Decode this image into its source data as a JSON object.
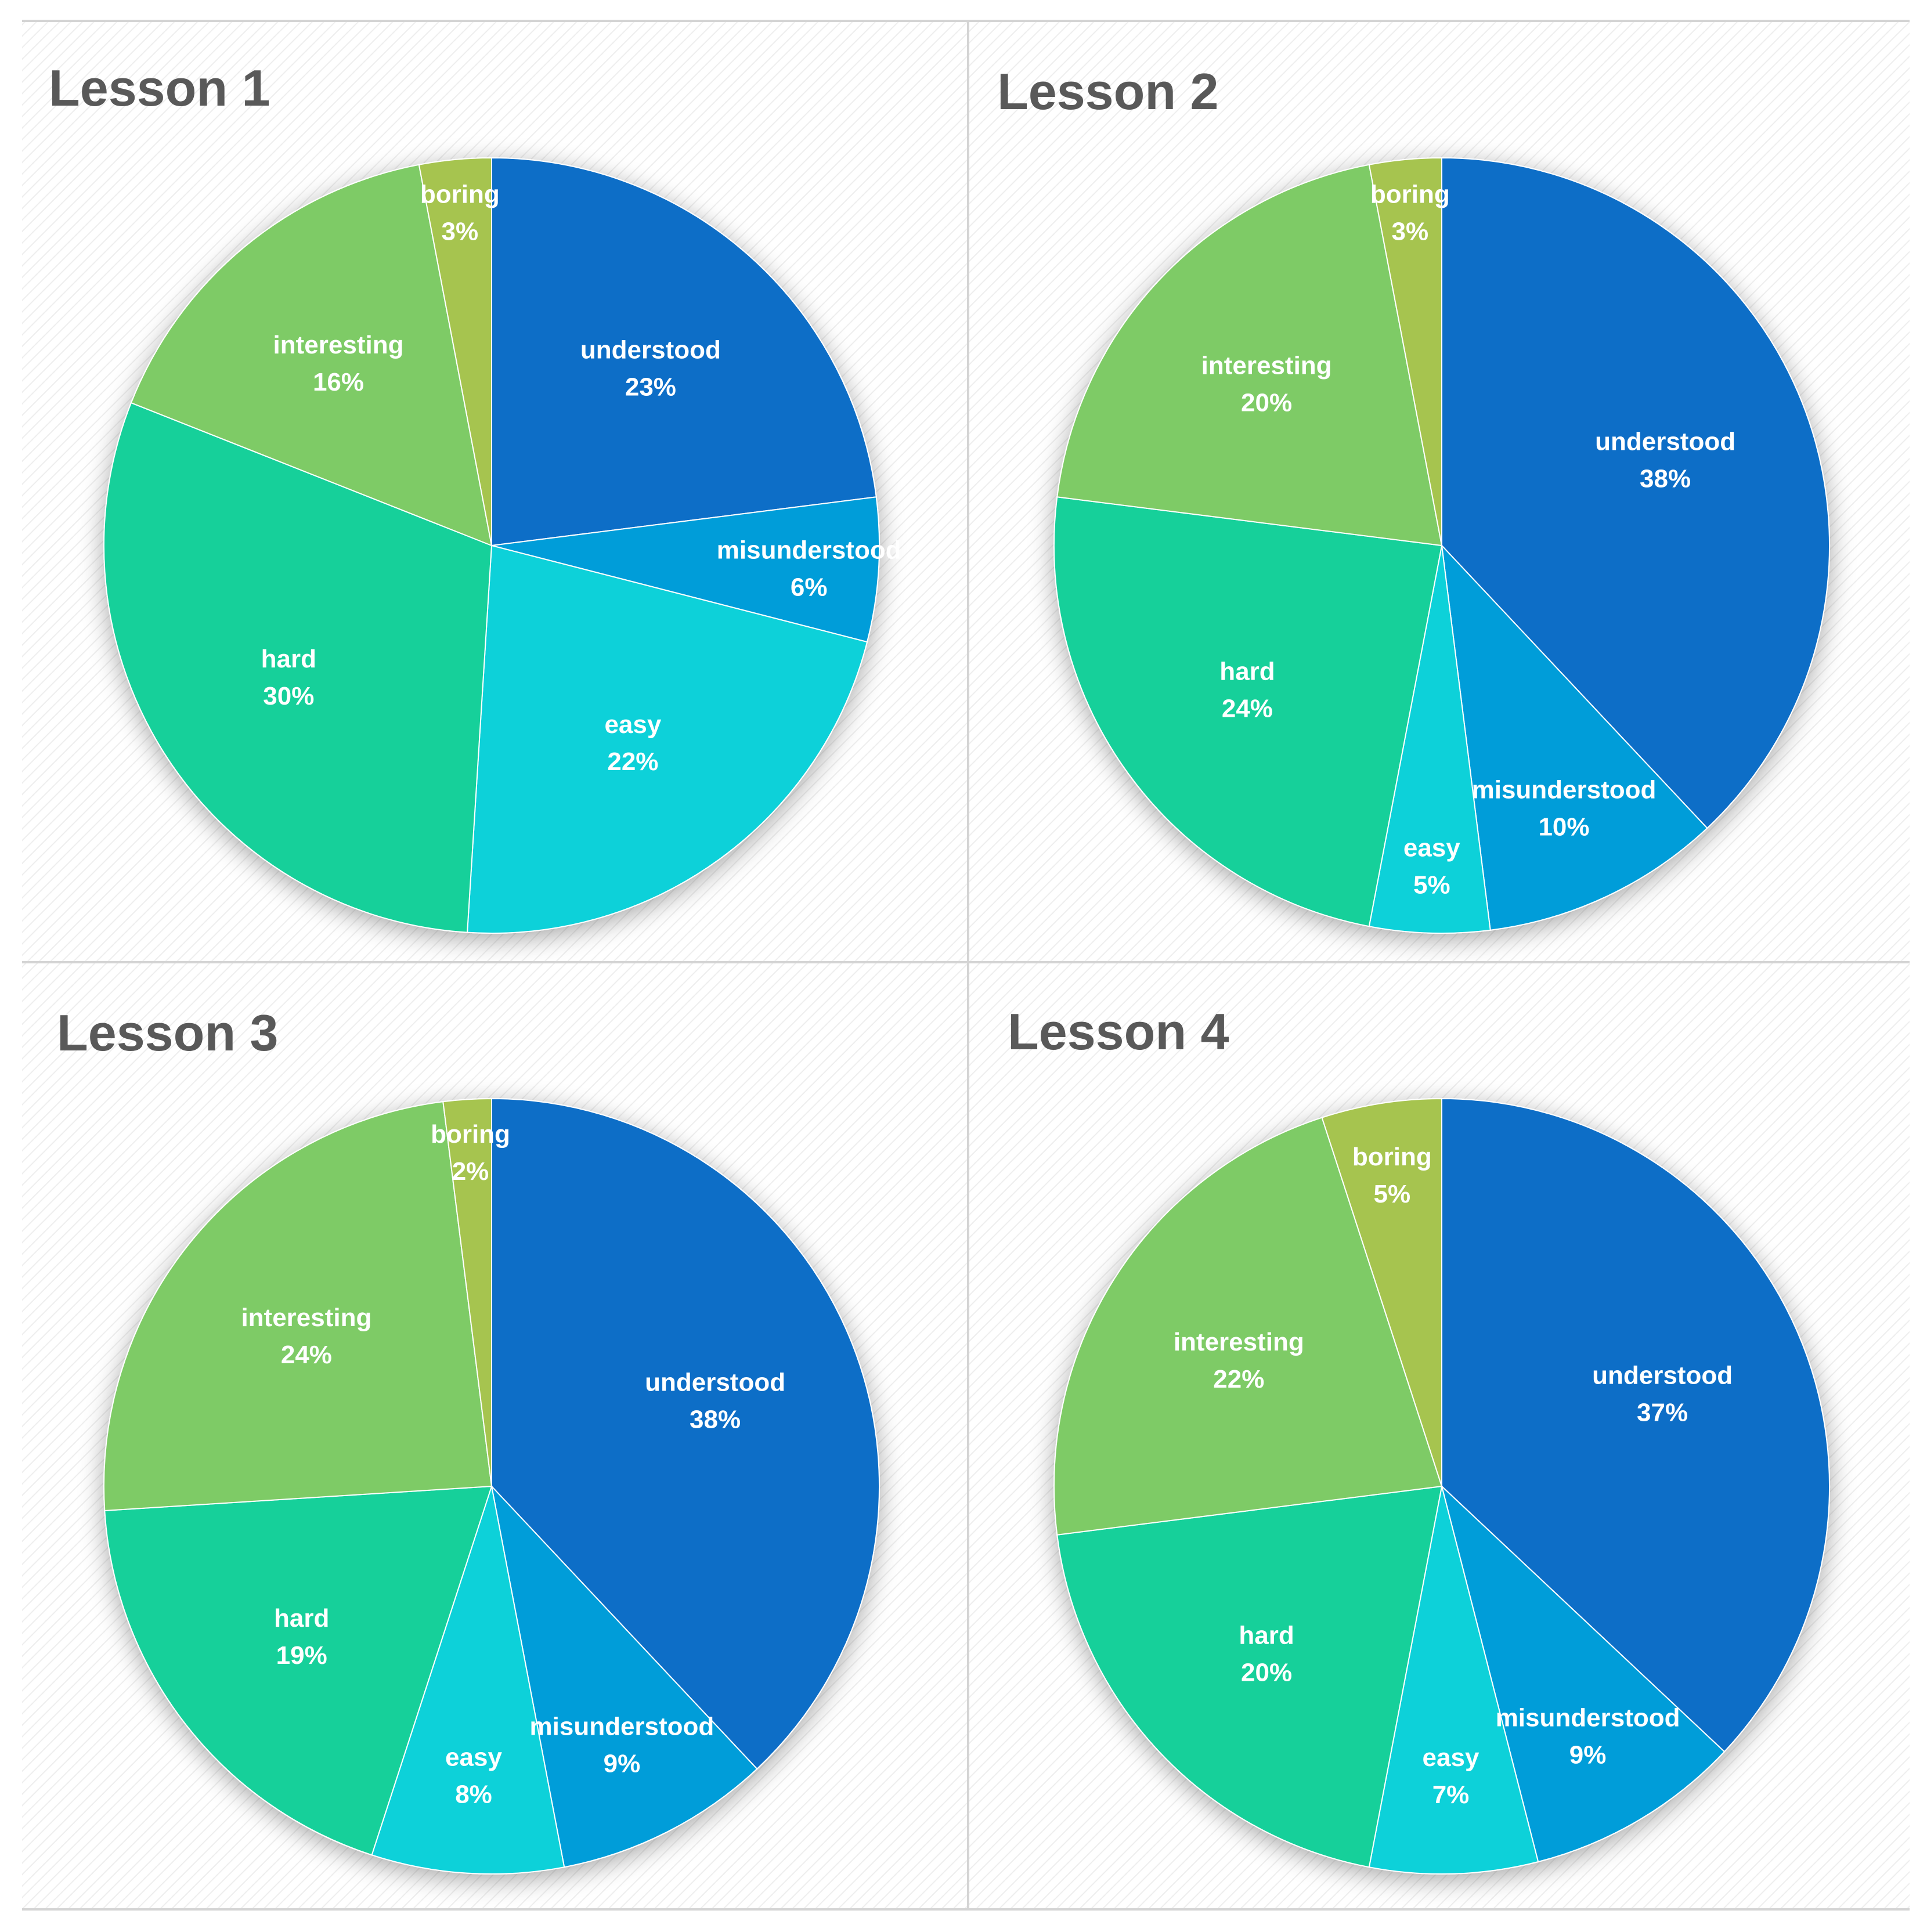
{
  "chart_data": [
    {
      "type": "pie",
      "title": "Lesson 1",
      "start_angle_deg": 0,
      "direction": "clockwise",
      "slices": [
        {
          "label": "understood",
          "value": 23,
          "display": "23%",
          "color": "#106EC7"
        },
        {
          "label": "misunderstood",
          "value": 6,
          "display": "6%",
          "color": "#039DD9"
        },
        {
          "label": "easy",
          "value": 22,
          "display": "22%",
          "color": "#0DD1D9"
        },
        {
          "label": "hard",
          "value": 30,
          "display": "30%",
          "color": "#12D09A"
        },
        {
          "label": "interesting",
          "value": 16,
          "display": "16%",
          "color": "#7ECB66"
        },
        {
          "label": "boring",
          "value": 3,
          "display": "3%",
          "color": "#A6C44F"
        }
      ]
    },
    {
      "type": "pie",
      "title": "Lesson 2",
      "start_angle_deg": 0,
      "direction": "clockwise",
      "slices": [
        {
          "label": "understood",
          "value": 38,
          "display": "38%",
          "color": "#106EC7"
        },
        {
          "label": "misunderstood",
          "value": 10,
          "display": "10%",
          "color": "#039DD9"
        },
        {
          "label": "easy",
          "value": 5,
          "display": "5%",
          "color": "#0DD1D9"
        },
        {
          "label": "hard",
          "value": 24,
          "display": "24%",
          "color": "#12D09A"
        },
        {
          "label": "interesting",
          "value": 20,
          "display": "20%",
          "color": "#7ECB66"
        },
        {
          "label": "boring",
          "value": 3,
          "display": "3%",
          "color": "#A6C44F"
        }
      ]
    },
    {
      "type": "pie",
      "title": "Lesson 3",
      "start_angle_deg": 0,
      "direction": "clockwise",
      "slices": [
        {
          "label": "understood",
          "value": 38,
          "display": "38%",
          "color": "#106EC7"
        },
        {
          "label": "misunderstood",
          "value": 9,
          "display": "9%",
          "color": "#039DD9"
        },
        {
          "label": "easy",
          "value": 8,
          "display": "8%",
          "color": "#0DD1D9"
        },
        {
          "label": "hard",
          "value": 19,
          "display": "19%",
          "color": "#12D09A"
        },
        {
          "label": "interesting",
          "value": 24,
          "display": "24%",
          "color": "#7ECB66"
        },
        {
          "label": "boring",
          "value": 2,
          "display": "2%",
          "color": "#A6C44F"
        }
      ]
    },
    {
      "type": "pie",
      "title": "Lesson 4",
      "start_angle_deg": 0,
      "direction": "clockwise",
      "slices": [
        {
          "label": "understood",
          "value": 37,
          "display": "37%",
          "color": "#106EC7"
        },
        {
          "label": "misunderstood",
          "value": 9,
          "display": "9%",
          "color": "#039DD9"
        },
        {
          "label": "easy",
          "value": 7,
          "display": "7%",
          "color": "#0DD1D9"
        },
        {
          "label": "hard",
          "value": 20,
          "display": "20%",
          "color": "#12D09A"
        },
        {
          "label": "interesting",
          "value": 22,
          "display": "22%",
          "color": "#7ECB66"
        },
        {
          "label": "boring",
          "value": 5,
          "display": "5%",
          "color": "#A6C44F"
        }
      ]
    }
  ]
}
